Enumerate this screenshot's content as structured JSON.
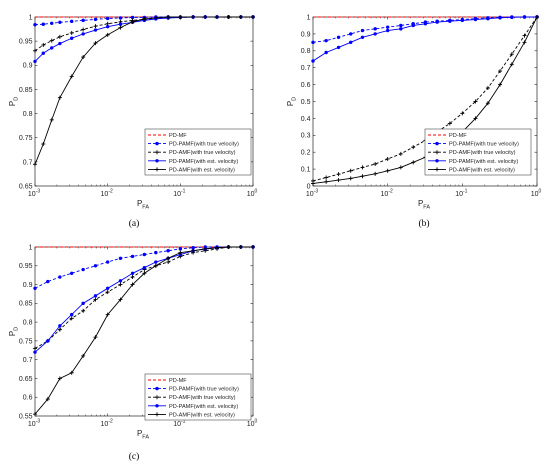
{
  "chart_data": [
    {
      "type": "line",
      "panel_label": "(a)",
      "xlabel_main": "P",
      "xlabel_sub": "FA",
      "ylabel_main": "P",
      "ylabel_sub": "D",
      "xscale": "log",
      "xlim": [
        0.001,
        1
      ],
      "ylim": [
        0.65,
        1
      ],
      "xticks": [
        {
          "base": "10",
          "exp": "-3"
        },
        {
          "base": "10",
          "exp": "-2"
        },
        {
          "base": "10",
          "exp": "-1"
        },
        {
          "base": "10",
          "exp": "0"
        }
      ],
      "yticks": [
        "0.65",
        "0.7",
        "0.75",
        "0.8",
        "0.85",
        "0.9",
        "0.95",
        "1"
      ],
      "grid": false,
      "legend_position": "bottom-right",
      "series": [
        {
          "name": "PD-MF",
          "color": "#ff0000",
          "dash": "dashed",
          "marker": "none",
          "x": [
            0.001,
            0.01,
            0.1,
            1
          ],
          "y": [
            1,
            1,
            1,
            1
          ]
        },
        {
          "name": "PD-PAMF(with true velocity)",
          "color": "#0000ff",
          "dash": "dashed",
          "marker": "dot",
          "x": [
            0.001,
            0.0013,
            0.0017,
            0.0022,
            0.0032,
            0.0046,
            0.0068,
            0.01,
            0.015,
            0.022,
            0.032,
            0.046,
            0.068,
            0.1,
            0.15,
            0.22,
            0.32,
            0.46,
            0.68,
            1
          ],
          "y": [
            0.984,
            0.985,
            0.987,
            0.989,
            0.991,
            0.993,
            0.995,
            0.997,
            0.998,
            0.999,
            0.999,
            1,
            1,
            1,
            1,
            1,
            1,
            1,
            1,
            1
          ]
        },
        {
          "name": "PD-AMF(with true velocity)",
          "color": "#000000",
          "dash": "dashed",
          "marker": "plus",
          "x": [
            0.001,
            0.0013,
            0.0017,
            0.0022,
            0.0032,
            0.0046,
            0.0068,
            0.01,
            0.015,
            0.022,
            0.032,
            0.046,
            0.068,
            0.1,
            0.15,
            0.22,
            0.32,
            0.46,
            0.68,
            1
          ],
          "y": [
            0.93,
            0.942,
            0.951,
            0.959,
            0.967,
            0.974,
            0.981,
            0.986,
            0.99,
            0.993,
            0.995,
            0.997,
            0.998,
            0.999,
            1,
            1,
            1,
            1,
            1,
            1
          ]
        },
        {
          "name": "PD-PAMF(with est. velocity)",
          "color": "#0000ff",
          "dash": "solid",
          "marker": "dot",
          "x": [
            0.001,
            0.0013,
            0.0017,
            0.0022,
            0.0032,
            0.0046,
            0.0068,
            0.01,
            0.015,
            0.022,
            0.032,
            0.046,
            0.068,
            0.1,
            0.15,
            0.22,
            0.32,
            0.46,
            0.68,
            1
          ],
          "y": [
            0.908,
            0.925,
            0.936,
            0.945,
            0.956,
            0.965,
            0.973,
            0.98,
            0.985,
            0.989,
            0.993,
            0.996,
            0.998,
            0.999,
            1,
            1,
            1,
            1,
            1,
            1
          ]
        },
        {
          "name": "PD-AMF(with est. velocity)",
          "color": "#000000",
          "dash": "solid",
          "marker": "plus",
          "x": [
            0.001,
            0.0013,
            0.0017,
            0.0022,
            0.0032,
            0.0046,
            0.0068,
            0.01,
            0.015,
            0.022,
            0.032,
            0.046,
            0.068,
            0.1,
            0.15,
            0.22,
            0.32,
            0.46,
            0.68,
            1
          ],
          "y": [
            0.695,
            0.737,
            0.787,
            0.833,
            0.877,
            0.917,
            0.946,
            0.963,
            0.978,
            0.99,
            0.996,
            0.998,
            1,
            1,
            1,
            1,
            1,
            1,
            1,
            1
          ]
        }
      ]
    },
    {
      "type": "line",
      "panel_label": "(b)",
      "xlabel_main": "P",
      "xlabel_sub": "FA",
      "ylabel_main": "P",
      "ylabel_sub": "D",
      "xscale": "log",
      "xlim": [
        0.001,
        1
      ],
      "ylim": [
        0,
        1
      ],
      "xticks": [
        {
          "base": "10",
          "exp": "-3"
        },
        {
          "base": "10",
          "exp": "-2"
        },
        {
          "base": "10",
          "exp": "-1"
        },
        {
          "base": "10",
          "exp": "0"
        }
      ],
      "yticks": [
        "0",
        "0.1",
        "0.2",
        "0.3",
        "0.4",
        "0.5",
        "0.6",
        "0.7",
        "0.8",
        "0.9",
        "1"
      ],
      "grid": false,
      "legend_position": "bottom-right",
      "series": [
        {
          "name": "PD-MF",
          "color": "#ff0000",
          "dash": "dashed",
          "marker": "none",
          "x": [
            0.001,
            0.01,
            0.1,
            1
          ],
          "y": [
            1,
            1,
            1,
            1
          ]
        },
        {
          "name": "PD-PAMF(with true velocity)",
          "color": "#0000ff",
          "dash": "dashed",
          "marker": "dot",
          "x": [
            0.001,
            0.0015,
            0.0022,
            0.0032,
            0.0046,
            0.0068,
            0.01,
            0.015,
            0.022,
            0.032,
            0.046,
            0.068,
            0.1,
            0.15,
            0.22,
            0.32,
            0.46,
            0.68,
            1
          ],
          "y": [
            0.85,
            0.86,
            0.88,
            0.9,
            0.92,
            0.93,
            0.94,
            0.95,
            0.96,
            0.97,
            0.975,
            0.98,
            0.985,
            0.99,
            0.995,
            0.998,
            1,
            1,
            1
          ]
        },
        {
          "name": "PD-AMF(with true velocity)",
          "color": "#000000",
          "dash": "dashed",
          "marker": "plus",
          "x": [
            0.001,
            0.0015,
            0.0022,
            0.0032,
            0.0046,
            0.0068,
            0.01,
            0.015,
            0.022,
            0.032,
            0.046,
            0.068,
            0.1,
            0.15,
            0.22,
            0.32,
            0.46,
            0.68,
            1
          ],
          "y": [
            0.03,
            0.05,
            0.07,
            0.09,
            0.11,
            0.13,
            0.16,
            0.19,
            0.23,
            0.27,
            0.32,
            0.37,
            0.43,
            0.5,
            0.58,
            0.68,
            0.78,
            0.89,
            1
          ]
        },
        {
          "name": "PD-PAMF(with est. velocity)",
          "color": "#0000ff",
          "dash": "solid",
          "marker": "dot",
          "x": [
            0.001,
            0.0015,
            0.0022,
            0.0032,
            0.0046,
            0.0068,
            0.01,
            0.015,
            0.022,
            0.032,
            0.046,
            0.068,
            0.1,
            0.15,
            0.22,
            0.32,
            0.46,
            0.68,
            1
          ],
          "y": [
            0.74,
            0.79,
            0.82,
            0.85,
            0.88,
            0.9,
            0.92,
            0.93,
            0.95,
            0.96,
            0.97,
            0.975,
            0.98,
            0.985,
            0.99,
            0.995,
            0.998,
            1,
            1
          ]
        },
        {
          "name": "PD-AMF(with est. velocity)",
          "color": "#000000",
          "dash": "solid",
          "marker": "plus",
          "x": [
            0.001,
            0.0015,
            0.0022,
            0.0032,
            0.0046,
            0.0068,
            0.01,
            0.015,
            0.022,
            0.032,
            0.046,
            0.068,
            0.1,
            0.15,
            0.22,
            0.32,
            0.46,
            0.68,
            1
          ],
          "y": [
            0.015,
            0.025,
            0.035,
            0.045,
            0.058,
            0.072,
            0.09,
            0.11,
            0.14,
            0.17,
            0.21,
            0.26,
            0.32,
            0.4,
            0.49,
            0.6,
            0.72,
            0.85,
            1
          ]
        }
      ]
    },
    {
      "type": "line",
      "panel_label": "(c)",
      "xlabel_main": "P",
      "xlabel_sub": "FA",
      "ylabel_main": "P",
      "ylabel_sub": "D",
      "xscale": "log",
      "xlim": [
        0.001,
        1
      ],
      "ylim": [
        0.55,
        1
      ],
      "xticks": [
        {
          "base": "10",
          "exp": "-3"
        },
        {
          "base": "10",
          "exp": "-2"
        },
        {
          "base": "10",
          "exp": "-1"
        },
        {
          "base": "10",
          "exp": "0"
        }
      ],
      "yticks": [
        "0.55",
        "0.6",
        "0.65",
        "0.7",
        "0.75",
        "0.8",
        "0.85",
        "0.9",
        "0.95",
        "1"
      ],
      "grid": false,
      "legend_position": "bottom-right",
      "series": [
        {
          "name": "PD-MF",
          "color": "#ff0000",
          "dash": "dashed",
          "marker": "none",
          "x": [
            0.001,
            0.01,
            0.1,
            1
          ],
          "y": [
            1,
            1,
            1,
            1
          ]
        },
        {
          "name": "PD-PAMF(with true velocity)",
          "color": "#0000ff",
          "dash": "dashed",
          "marker": "dot",
          "x": [
            0.001,
            0.0015,
            0.0022,
            0.0032,
            0.0046,
            0.0068,
            0.01,
            0.015,
            0.022,
            0.032,
            0.046,
            0.068,
            0.1,
            0.15,
            0.22,
            0.32,
            0.46,
            0.68,
            1
          ],
          "y": [
            0.89,
            0.908,
            0.92,
            0.93,
            0.94,
            0.95,
            0.96,
            0.97,
            0.975,
            0.98,
            0.985,
            0.99,
            0.995,
            0.998,
            1,
            1,
            1,
            1,
            1
          ]
        },
        {
          "name": "PD-AMF(with true velocity)",
          "color": "#000000",
          "dash": "dashed",
          "marker": "plus",
          "x": [
            0.001,
            0.0015,
            0.0022,
            0.0032,
            0.0046,
            0.0068,
            0.01,
            0.015,
            0.022,
            0.032,
            0.046,
            0.068,
            0.1,
            0.15,
            0.22,
            0.32,
            0.46,
            0.68,
            1
          ],
          "y": [
            0.73,
            0.75,
            0.78,
            0.81,
            0.83,
            0.86,
            0.88,
            0.9,
            0.92,
            0.94,
            0.95,
            0.96,
            0.975,
            0.985,
            0.99,
            0.995,
            1,
            1,
            1
          ]
        },
        {
          "name": "PD-PAMF(with est. velocity)",
          "color": "#0000ff",
          "dash": "solid",
          "marker": "dot",
          "x": [
            0.001,
            0.0015,
            0.0022,
            0.0032,
            0.0046,
            0.0068,
            0.01,
            0.015,
            0.022,
            0.032,
            0.046,
            0.068,
            0.1,
            0.15,
            0.22,
            0.32,
            0.46,
            0.68,
            1
          ],
          "y": [
            0.72,
            0.75,
            0.79,
            0.82,
            0.85,
            0.87,
            0.89,
            0.91,
            0.93,
            0.945,
            0.96,
            0.97,
            0.98,
            0.99,
            0.995,
            0.998,
            1,
            1,
            1
          ]
        },
        {
          "name": "PD-AMF(with est. velocity)",
          "color": "#000000",
          "dash": "solid",
          "marker": "plus",
          "x": [
            0.001,
            0.0015,
            0.0022,
            0.0032,
            0.0046,
            0.0068,
            0.01,
            0.015,
            0.022,
            0.032,
            0.046,
            0.068,
            0.1,
            0.15,
            0.22,
            0.32,
            0.46,
            0.68,
            1
          ],
          "y": [
            0.555,
            0.595,
            0.65,
            0.665,
            0.71,
            0.76,
            0.82,
            0.86,
            0.9,
            0.93,
            0.95,
            0.97,
            0.985,
            0.99,
            0.995,
            0.998,
            1,
            1,
            1
          ]
        }
      ]
    }
  ]
}
